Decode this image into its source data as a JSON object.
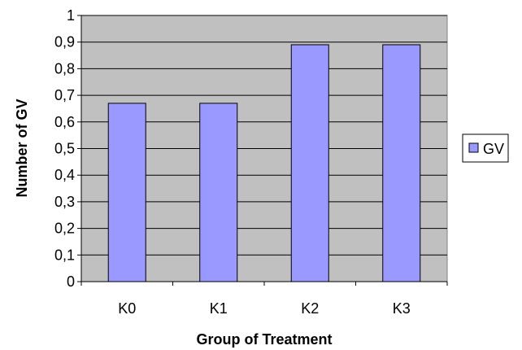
{
  "chart_data": {
    "type": "bar",
    "title": "",
    "xlabel": "Group of Treatment",
    "ylabel": "Number of GV",
    "categories": [
      "K0",
      "K1",
      "K2",
      "K3"
    ],
    "series": [
      {
        "name": "GV",
        "values": [
          0.67,
          0.67,
          0.89,
          0.89
        ]
      }
    ],
    "ylim": [
      0,
      1
    ],
    "yticks": [
      0,
      0.1,
      0.2,
      0.3,
      0.4,
      0.5,
      0.6,
      0.7,
      0.8,
      0.9,
      1
    ],
    "ytick_labels": [
      "0",
      "0,1",
      "0,2",
      "0,3",
      "0,4",
      "0,5",
      "0,6",
      "0,7",
      "0,8",
      "0,9",
      "1"
    ],
    "grid": true,
    "legend": "right",
    "colors": {
      "plot_background": "#c0c0c0",
      "bar_fill": "#9999ff",
      "bar_stroke": "#000000",
      "gridline": "#000000"
    }
  }
}
